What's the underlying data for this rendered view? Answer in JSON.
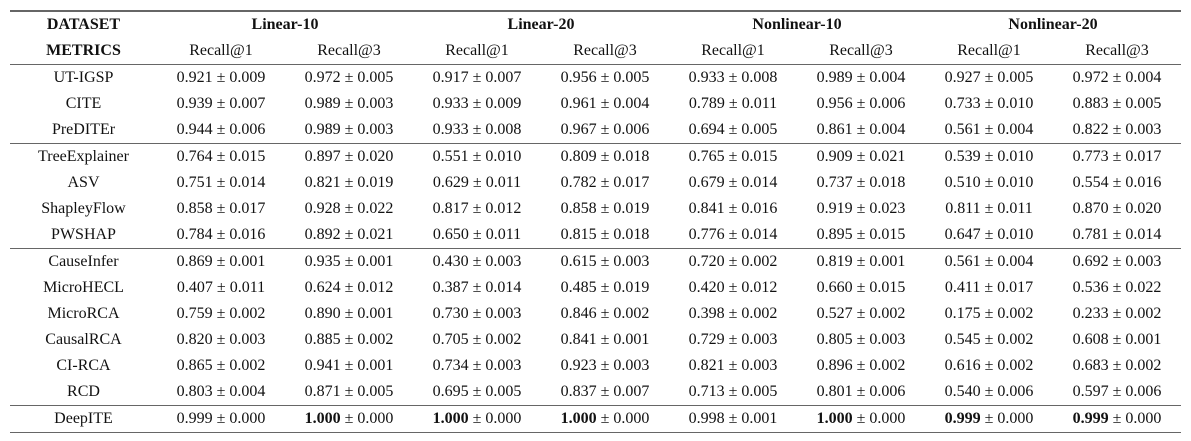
{
  "header": {
    "dataset": "DATASET",
    "metrics": "METRICS",
    "columns": [
      {
        "name": "Linear-10",
        "metrics": [
          "Recall@1",
          "Recall@3"
        ]
      },
      {
        "name": "Linear-20",
        "metrics": [
          "Recall@1",
          "Recall@3"
        ]
      },
      {
        "name": "Nonlinear-10",
        "metrics": [
          "Recall@1",
          "Recall@3"
        ]
      },
      {
        "name": "Nonlinear-20",
        "metrics": [
          "Recall@1",
          "Recall@3"
        ]
      }
    ]
  },
  "table": {
    "groups": [
      [
        {
          "name": "UT-IGSP",
          "cells": [
            "0.921 ± 0.009",
            "0.972 ± 0.005",
            "0.917 ± 0.007",
            "0.956 ± 0.005",
            "0.933 ± 0.008",
            "0.989 ± 0.004",
            "0.927 ± 0.005",
            "0.972 ± 0.004"
          ]
        },
        {
          "name": "CITE",
          "cells": [
            "0.939 ± 0.007",
            "0.989 ± 0.003",
            "0.933 ± 0.009",
            "0.961 ± 0.004",
            "0.789 ± 0.011",
            "0.956 ± 0.006",
            "0.733 ± 0.010",
            "0.883 ± 0.005"
          ]
        },
        {
          "name": "PreDITEr",
          "cells": [
            "0.944 ± 0.006",
            "0.989 ± 0.003",
            "0.933 ± 0.008",
            "0.967 ± 0.006",
            "0.694 ± 0.005",
            "0.861 ± 0.004",
            "0.561 ± 0.004",
            "0.822 ± 0.003"
          ]
        }
      ],
      [
        {
          "name": "TreeExplainer",
          "cells": [
            "0.764 ± 0.015",
            "0.897 ± 0.020",
            "0.551 ± 0.010",
            "0.809 ± 0.018",
            "0.765 ± 0.015",
            "0.909 ± 0.021",
            "0.539 ± 0.010",
            "0.773 ± 0.017"
          ]
        },
        {
          "name": "ASV",
          "cells": [
            "0.751 ± 0.014",
            "0.821 ± 0.019",
            "0.629 ± 0.011",
            "0.782 ± 0.017",
            "0.679 ± 0.014",
            "0.737 ± 0.018",
            "0.510 ± 0.010",
            "0.554 ± 0.016"
          ]
        },
        {
          "name": "ShapleyFlow",
          "cells": [
            "0.858 ± 0.017",
            "0.928 ± 0.022",
            "0.817 ± 0.012",
            "0.858 ± 0.019",
            "0.841 ± 0.016",
            "0.919 ± 0.023",
            "0.811 ± 0.011",
            "0.870 ± 0.020"
          ]
        },
        {
          "name": "PWSHAP",
          "cells": [
            "0.784 ± 0.016",
            "0.892 ± 0.021",
            "0.650 ± 0.011",
            "0.815 ± 0.018",
            "0.776 ± 0.014",
            "0.895 ± 0.015",
            "0.647 ± 0.010",
            "0.781 ± 0.014"
          ]
        }
      ],
      [
        {
          "name": "CauseInfer",
          "cells": [
            "0.869 ± 0.001",
            "0.935 ± 0.001",
            "0.430 ± 0.003",
            "0.615 ± 0.003",
            "0.720 ± 0.002",
            "0.819 ± 0.001",
            "0.561 ± 0.004",
            "0.692 ± 0.003"
          ]
        },
        {
          "name": "MicroHECL",
          "cells": [
            "0.407 ± 0.011",
            "0.624 ± 0.012",
            "0.387 ± 0.014",
            "0.485 ± 0.019",
            "0.420 ± 0.012",
            "0.660 ± 0.015",
            "0.411 ± 0.017",
            "0.536 ± 0.022"
          ]
        },
        {
          "name": "MicroRCA",
          "cells": [
            "0.759 ± 0.002",
            "0.890 ± 0.001",
            "0.730 ± 0.003",
            "0.846 ± 0.002",
            "0.398 ± 0.002",
            "0.527 ± 0.002",
            "0.175 ± 0.002",
            "0.233 ± 0.002"
          ]
        },
        {
          "name": "CausalRCA",
          "cells": [
            "0.820 ± 0.003",
            "0.885 ± 0.002",
            "0.705 ± 0.002",
            "0.841 ± 0.001",
            "0.729 ± 0.003",
            "0.805 ± 0.003",
            "0.545 ± 0.002",
            "0.608 ± 0.001"
          ]
        },
        {
          "name": "CI-RCA",
          "cells": [
            "0.865 ± 0.002",
            "0.941 ± 0.001",
            "0.734 ± 0.003",
            "0.923 ± 0.003",
            "0.821 ± 0.003",
            "0.896 ± 0.002",
            "0.616 ± 0.002",
            "0.683 ± 0.002"
          ]
        },
        {
          "name": "RCD",
          "cells": [
            "0.803 ± 0.004",
            "0.871 ± 0.005",
            "0.695 ± 0.005",
            "0.837 ± 0.007",
            "0.713 ± 0.005",
            "0.801 ± 0.006",
            "0.540 ± 0.006",
            "0.597 ± 0.006"
          ]
        }
      ],
      [
        {
          "name": "DeepITE",
          "cells": [
            "0.999 ± 0.000",
            "1.000 ± 0.000",
            "1.000 ± 0.000",
            "1.000 ± 0.000",
            "0.998 ± 0.001",
            "1.000 ± 0.000",
            "0.999 ± 0.000",
            "0.999 ± 0.000"
          ],
          "bold": [
            1,
            2,
            3,
            5,
            6,
            7
          ]
        }
      ]
    ]
  }
}
